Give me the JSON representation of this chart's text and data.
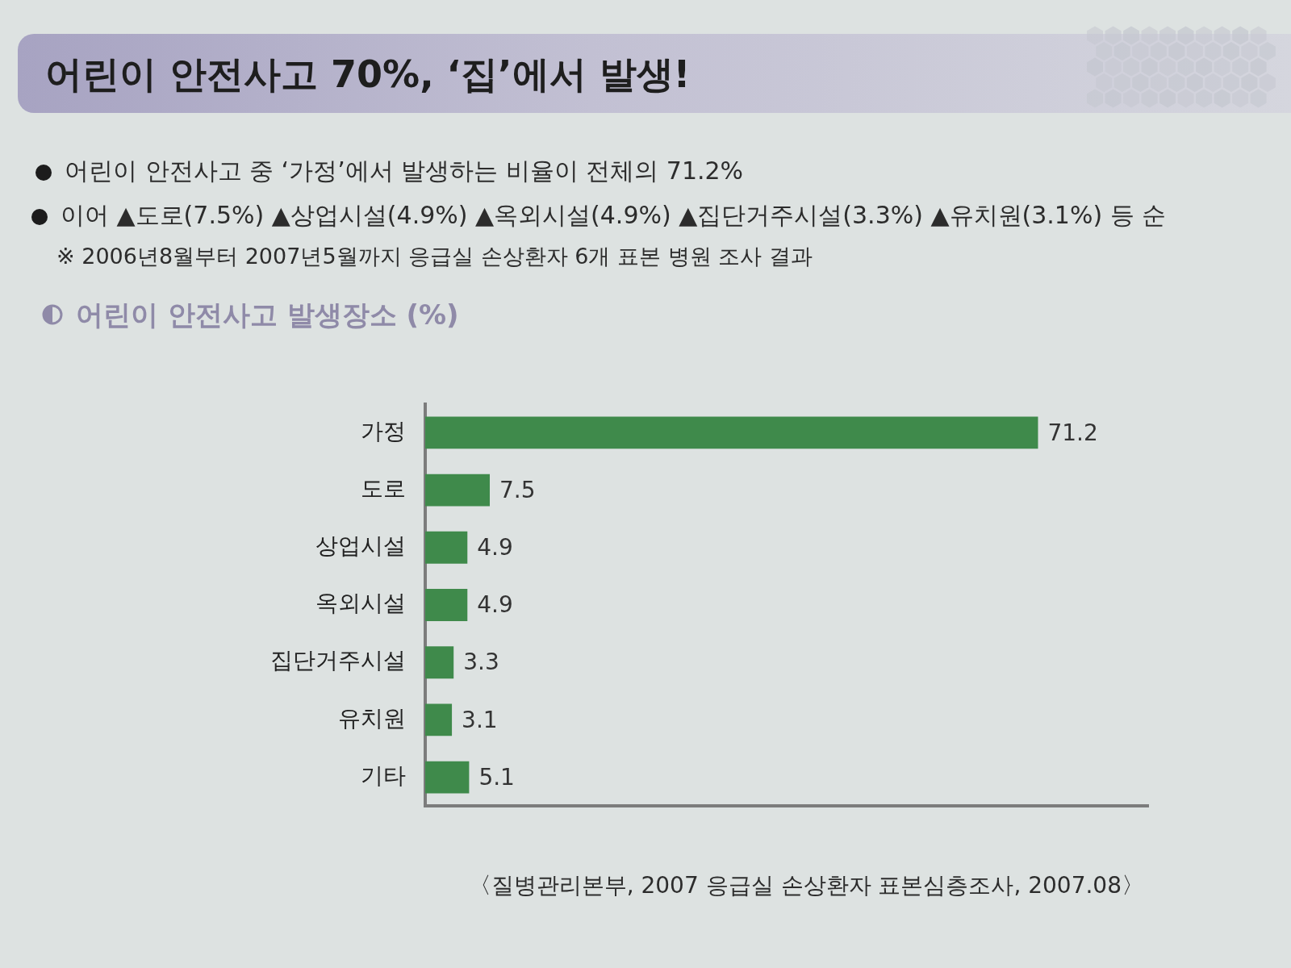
{
  "chart_data": {
    "type": "bar",
    "orientation": "horizontal",
    "title": "어린이 안전사고 70%, ‘집’에서 발생!",
    "subtitle": "어린이 안전사고 발생장소 (%)",
    "annotations": [
      "어린이 안전사고 중 ‘가정’에서 발생하는 비율이 전체의 71.2%",
      "이어 ▲도로(7.5%) ▲상업시설(4.9%) ▲옥외시설(4.9%) ▲집단거주시설(3.3%) ▲유치원(3.1%) 등 순",
      "※ 2006년8월부터 2007년5월까지 응급실 손상환자 6개 표본 병원 조사 결과",
      "〈질병관리본부, 2007 응급실 손상환자 표본심층조사, 2007.08〉"
    ],
    "categories": [
      "가정",
      "도로",
      "상업시설",
      "옥외시설",
      "집단거주시설",
      "유치원",
      "기타"
    ],
    "values": [
      71.2,
      7.5,
      4.9,
      4.9,
      3.3,
      3.1,
      5.1
    ],
    "color": "#3f8a4b",
    "xlim": [
      0,
      84
    ],
    "data_labels": true,
    "grid": false,
    "legend": false,
    "tick_labels": "y"
  }
}
